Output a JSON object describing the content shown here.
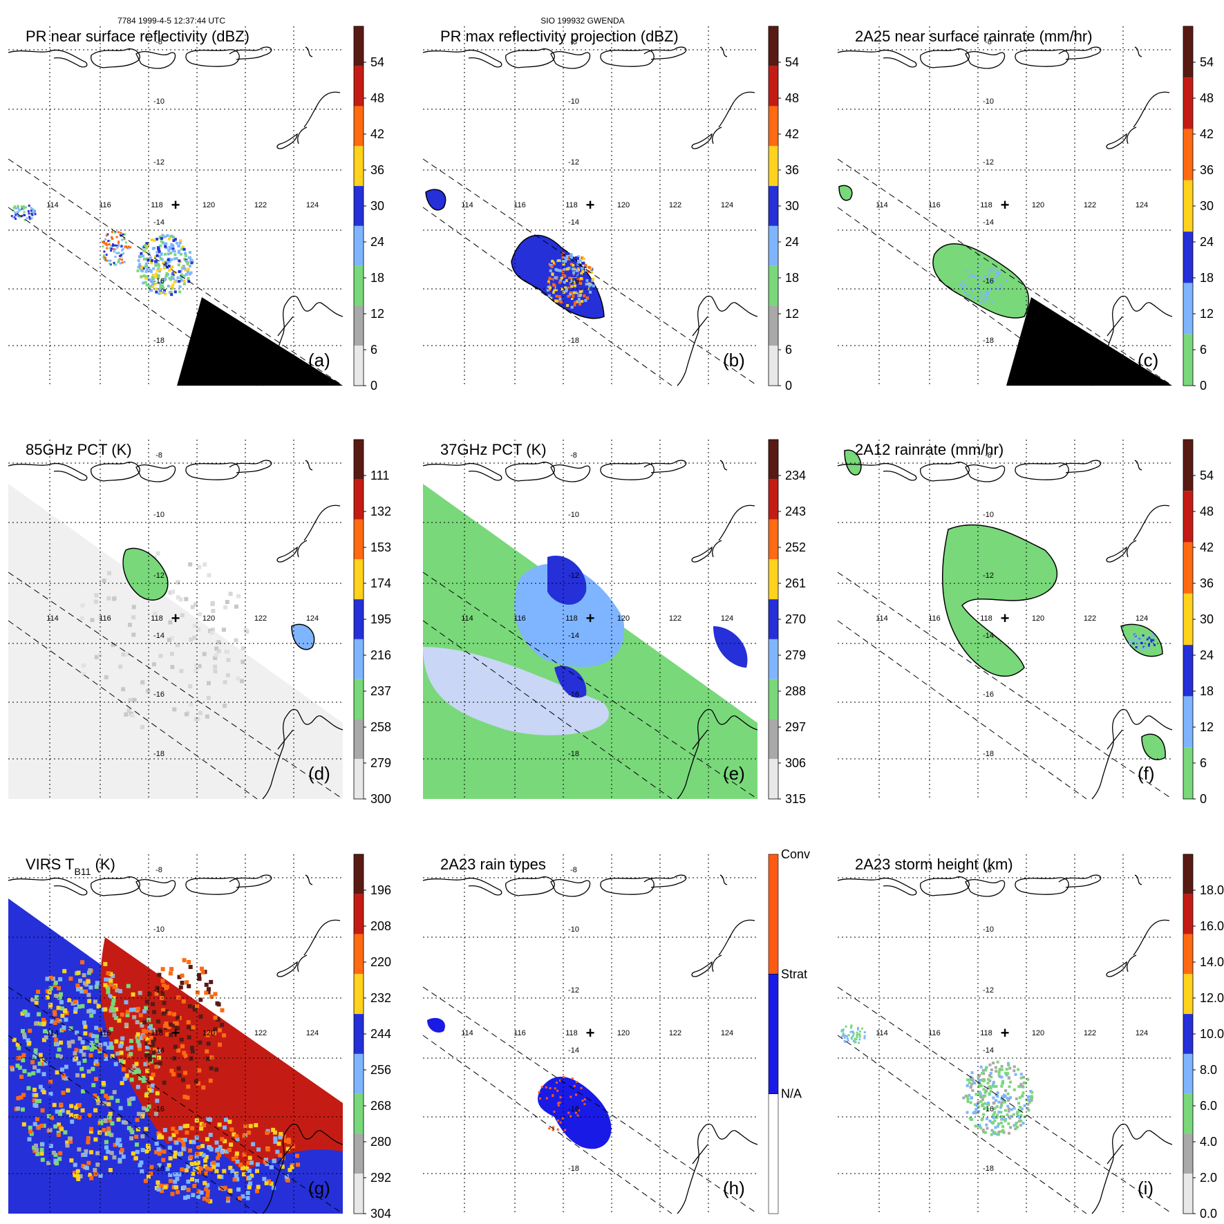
{
  "header": {
    "left": "7784 1999-4-5 12:37:44 UTC",
    "center": "SIO 199932 GWENDA"
  },
  "gridlabels": {
    "lon": [
      "114",
      "116",
      "118",
      "120",
      "122",
      "124"
    ],
    "lat": [
      "-8",
      "-10",
      "-12",
      "-14",
      "-16",
      "-18"
    ]
  },
  "panels": [
    {
      "id": "a",
      "title": "PR near surface reflectivity (dBZ)",
      "label": "(a)",
      "colorbar_ticks": [
        "54",
        "48",
        "42",
        "36",
        "30",
        "24",
        "18",
        "12",
        "6",
        "0"
      ],
      "colorbar": [
        "#5a1a14",
        "#c41c14",
        "#ff6a12",
        "#ffd21e",
        "#2530d8",
        "#7fb5ff",
        "#79d87a",
        "#a9a9a9",
        "#e8e8e8"
      ],
      "field": "radar_refl",
      "stops": [
        0.1,
        0.2,
        0.3,
        0.4,
        0.5,
        0.6,
        0.7,
        0.8,
        0.9
      ]
    },
    {
      "id": "b",
      "title": "PR max reflectivity projection (dBZ)",
      "label": "(b)",
      "colorbar_ticks": [
        "54",
        "48",
        "42",
        "36",
        "30",
        "24",
        "18",
        "12",
        "6",
        "0"
      ],
      "colorbar": [
        "#5a1a14",
        "#c41c14",
        "#ff6a12",
        "#ffd21e",
        "#2530d8",
        "#7fb5ff",
        "#79d87a",
        "#a9a9a9",
        "#e8e8e8"
      ],
      "field": "radar_max",
      "stops": [
        0.1,
        0.2,
        0.3,
        0.4,
        0.5,
        0.6,
        0.7,
        0.8,
        0.9
      ]
    },
    {
      "id": "c",
      "title": "2A25 near surface rainrate (mm/hr)",
      "label": "(c)",
      "colorbar_ticks": [
        "54",
        "48",
        "42",
        "36",
        "30",
        "24",
        "18",
        "12",
        "6",
        "0"
      ],
      "colorbar": [
        "#5a1a14",
        "#c41c14",
        "#ff6a12",
        "#ffd21e",
        "#2530d8",
        "#7fb5ff",
        "#79d87a"
      ],
      "field": "radar_rain",
      "stops": []
    },
    {
      "id": "d",
      "title": "85GHz PCT (K)",
      "label": "(d)",
      "colorbar_ticks": [
        "111",
        "132",
        "153",
        "174",
        "195",
        "216",
        "237",
        "258",
        "279",
        "300"
      ],
      "colorbar": [
        "#5a1a14",
        "#c41c14",
        "#ff6a12",
        "#ffd21e",
        "#2530d8",
        "#7fb5ff",
        "#79d87a",
        "#a9a9a9",
        "#e8e8e8"
      ],
      "field": "pct85",
      "stops": []
    },
    {
      "id": "e",
      "title": "37GHz PCT (K)",
      "label": "(e)",
      "colorbar_ticks": [
        "234",
        "243",
        "252",
        "261",
        "270",
        "279",
        "288",
        "297",
        "306",
        "315"
      ],
      "colorbar": [
        "#5a1a14",
        "#c41c14",
        "#ff6a12",
        "#ffd21e",
        "#2530d8",
        "#7fb5ff",
        "#79d87a",
        "#a9a9a9",
        "#e8e8e8"
      ],
      "field": "pct37",
      "stops": []
    },
    {
      "id": "f",
      "title": "2A12 rainrate (mm/hr)",
      "label": "(f)",
      "colorbar_ticks": [
        "54",
        "48",
        "42",
        "36",
        "30",
        "24",
        "18",
        "12",
        "6",
        "0"
      ],
      "colorbar": [
        "#5a1a14",
        "#c41c14",
        "#ff6a12",
        "#ffd21e",
        "#2530d8",
        "#7fb5ff",
        "#79d87a"
      ],
      "field": "tmi_rain",
      "stops": []
    },
    {
      "id": "g",
      "title": "VIRS T",
      "title_sub": "B11",
      "title_suffix": " (K)",
      "label": "(g)",
      "colorbar_ticks": [
        "196",
        "208",
        "220",
        "232",
        "244",
        "256",
        "268",
        "280",
        "292",
        "304"
      ],
      "colorbar": [
        "#5a1a14",
        "#c41c14",
        "#ff6a12",
        "#ffd21e",
        "#2530d8",
        "#7fb5ff",
        "#79d87a",
        "#a9a9a9",
        "#e8e8e8"
      ],
      "field": "virs",
      "stops": []
    },
    {
      "id": "h",
      "title": "2A23 rain types",
      "label": "(h)",
      "colorbar_ticks": [
        "Conv",
        "Strat",
        "N/A"
      ],
      "colorbar": [
        "#ff5a14",
        "#1a1ae6",
        "#ffffff"
      ],
      "field": "raintype",
      "stops": []
    },
    {
      "id": "i",
      "title": "2A23 storm height (km)",
      "label": "(i)",
      "colorbar_ticks": [
        "18.0",
        "16.0",
        "14.0",
        "12.0",
        "10.0",
        "8.0",
        "6.0",
        "4.0",
        "2.0",
        "0.0"
      ],
      "colorbar": [
        "#5a1a14",
        "#c41c14",
        "#ff6a12",
        "#ffd21e",
        "#2530d8",
        "#7fb5ff",
        "#79d87a",
        "#a9a9a9",
        "#e8e8e8"
      ],
      "field": "height",
      "stops": []
    }
  ],
  "colors": {
    "coastline": "#000000",
    "missing_data": "#000000",
    "background": "#ffffff"
  }
}
